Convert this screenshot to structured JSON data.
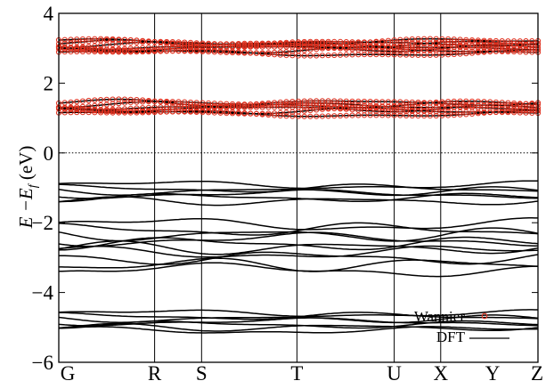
{
  "chart_data": {
    "type": "line",
    "ylabel": {
      "main": "E −E",
      "sub": "f",
      "unit": " (eV)"
    },
    "ylim": [
      -6,
      4
    ],
    "yticks": [
      4,
      2,
      0,
      -2,
      -4,
      -6
    ],
    "ytick_labels": [
      "4",
      "2",
      "0",
      "−2",
      "−4",
      "−6"
    ],
    "kpoints": [
      {
        "label": "G",
        "x": 0.0
      },
      {
        "label": "R",
        "x": 0.2
      },
      {
        "label": "S",
        "x": 0.298
      },
      {
        "label": "T",
        "x": 0.497
      },
      {
        "label": "U",
        "x": 0.7
      },
      {
        "label": "X",
        "x": 0.797
      },
      {
        "label": "Y",
        "x": 0.9945
      },
      {
        "label": "Z",
        "x": 1.0
      }
    ],
    "xlim": [
      0,
      1
    ],
    "fermi_level": 0,
    "grid": "vertical lines at high-symmetry points",
    "legend": {
      "placement": "top-right",
      "entries": [
        {
          "name": "Wannier",
          "marker": "open-circle",
          "color": "#e0301e"
        },
        {
          "name": "DFT",
          "marker": "line",
          "color": "#000000"
        }
      ]
    },
    "colors": {
      "wannier": "#e0301e",
      "dft": "#000000"
    },
    "band_groups": [
      {
        "name": "conduction-upper",
        "wannier": true,
        "centers": [
          2.86,
          2.94,
          3.0,
          3.05,
          3.1,
          3.14,
          3.18
        ],
        "amp": 0.07
      },
      {
        "name": "conduction-lower",
        "wannier": true,
        "centers": [
          1.12,
          1.2,
          1.27,
          1.33,
          1.39,
          1.44
        ],
        "amp": 0.07
      },
      {
        "name": "valence-1",
        "wannier": false,
        "centers": [
          -0.92,
          -1.02,
          -1.1,
          -1.18,
          -1.28,
          -1.38
        ],
        "amp": 0.09
      },
      {
        "name": "valence-2",
        "wannier": false,
        "centers": [
          -2.05,
          -2.2,
          -2.35,
          -2.48,
          -2.6,
          -2.72,
          -2.85,
          -3.0,
          -3.2,
          -3.35
        ],
        "amp": 0.14
      },
      {
        "name": "valence-3",
        "wannier": false,
        "centers": [
          -4.6,
          -4.68,
          -4.76,
          -4.84,
          -4.92,
          -5.0,
          -5.08
        ],
        "amp": 0.08
      }
    ]
  }
}
